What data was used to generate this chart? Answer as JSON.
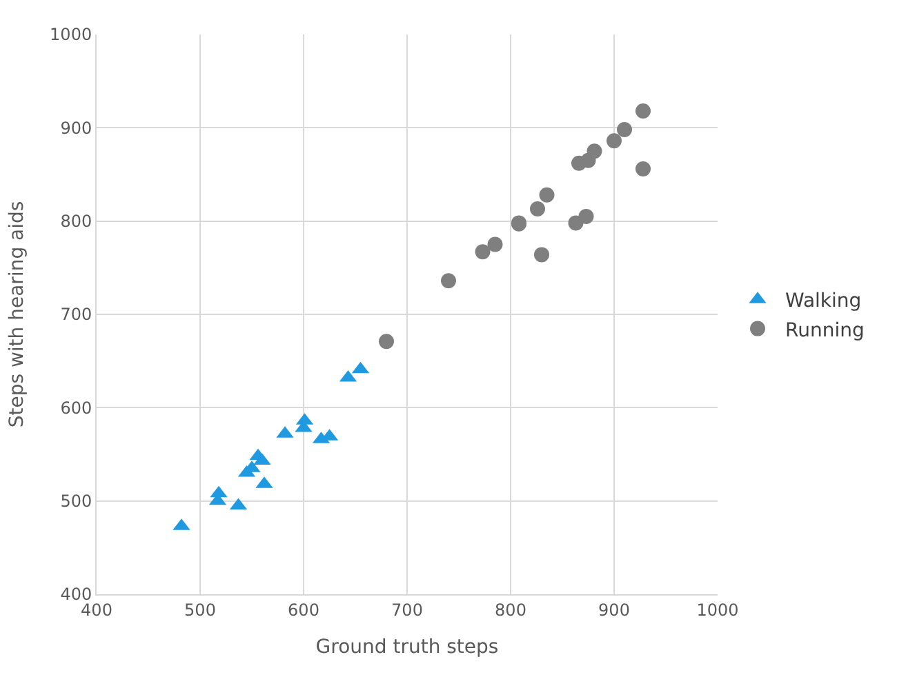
{
  "chart_data": {
    "type": "scatter",
    "xlabel": "Ground truth steps",
    "ylabel": "Steps with hearing aids",
    "xlim": [
      400,
      1000
    ],
    "xticks": [
      400,
      500,
      600,
      700,
      800,
      900,
      1000
    ],
    "ylim": [
      400,
      1000
    ],
    "yticks": [
      400,
      500,
      600,
      700,
      800,
      900,
      1000
    ],
    "grid": true,
    "legend": "right",
    "series": [
      {
        "name": "Walking",
        "color": "#1f9ae0",
        "marker": "triangle",
        "x": [
          482,
          517,
          518,
          537,
          545,
          550,
          556,
          560,
          562,
          582,
          600,
          601,
          617,
          625,
          643,
          655
        ],
        "values": [
          473,
          500,
          508,
          495,
          530,
          535,
          548,
          543,
          518,
          572,
          578,
          586,
          566,
          569,
          632,
          641
        ]
      },
      {
        "name": "Running",
        "color": "#7f7f7f",
        "marker": "circle",
        "x": [
          680,
          740,
          773,
          785,
          808,
          808,
          826,
          830,
          835,
          863,
          865,
          866,
          873,
          875,
          881,
          900,
          910,
          928,
          928
        ],
        "values": [
          671,
          736,
          767,
          775,
          797,
          798,
          813,
          764,
          828,
          798,
          null,
          862,
          805,
          865,
          875,
          886,
          898,
          918,
          856
        ]
      }
    ]
  }
}
